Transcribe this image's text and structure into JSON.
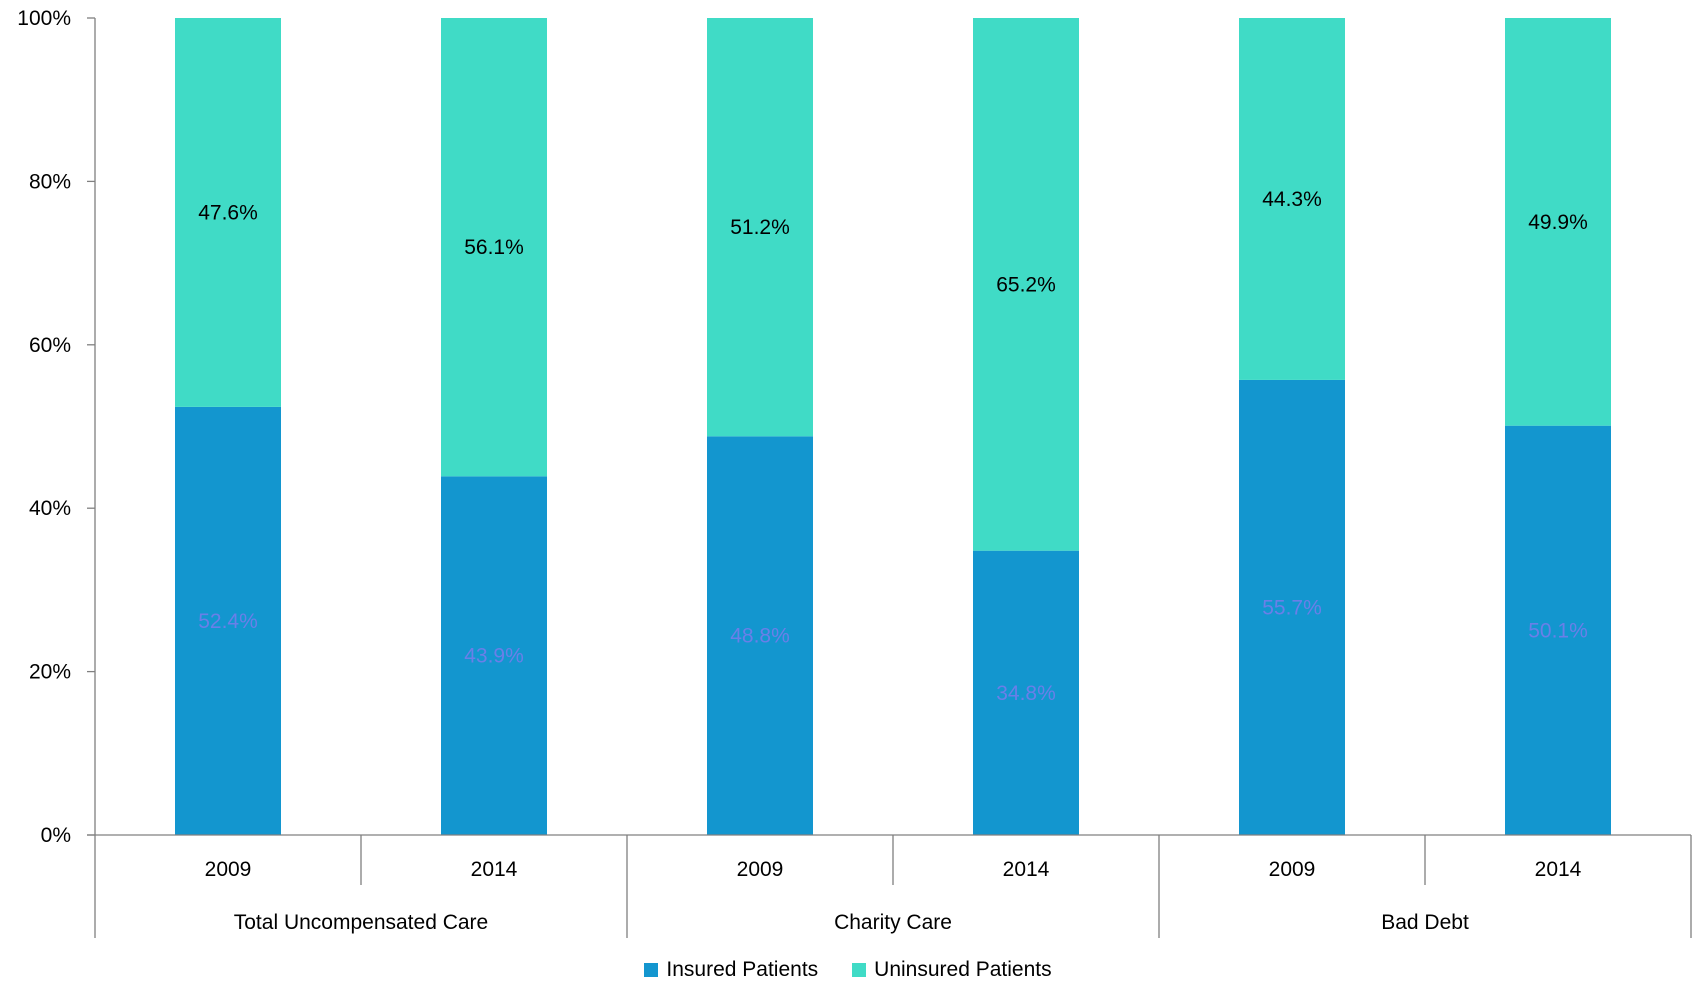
{
  "chart_data": {
    "type": "bar",
    "stacked": true,
    "percent_stacked": true,
    "categories": [
      {
        "year": "2009",
        "group": "Total Uncompensated Care"
      },
      {
        "year": "2014",
        "group": "Total Uncompensated Care"
      },
      {
        "year": "2009",
        "group": "Charity Care"
      },
      {
        "year": "2014",
        "group": "Charity Care"
      },
      {
        "year": "2009",
        "group": "Bad Debt"
      },
      {
        "year": "2014",
        "group": "Bad Debt"
      }
    ],
    "groups": [
      "Total Uncompensated Care",
      "Charity Care",
      "Bad Debt"
    ],
    "series": [
      {
        "name": "Insured Patients",
        "color": "#1396cf",
        "label_color": "#6a7fe8",
        "values": [
          52.4,
          43.9,
          48.8,
          34.8,
          55.7,
          50.1
        ],
        "labels": [
          "52.4%",
          "43.9%",
          "48.8%",
          "34.8%",
          "55.7%",
          "50.1%"
        ]
      },
      {
        "name": "Uninsured Patients",
        "color": "#40dbc6",
        "label_color": "#000000",
        "values": [
          47.6,
          56.1,
          51.2,
          65.2,
          44.3,
          49.9
        ],
        "labels": [
          "47.6%",
          "56.1%",
          "51.2%",
          "65.2%",
          "44.3%",
          "49.9%"
        ]
      }
    ],
    "ylim": [
      0,
      100
    ],
    "y_ticks": [
      "0%",
      "20%",
      "40%",
      "60%",
      "80%",
      "100%"
    ],
    "y_tick_values": [
      0,
      20,
      40,
      60,
      80,
      100
    ],
    "grid": false,
    "legend_position": "bottom-center",
    "title": "",
    "xlabel": "",
    "ylabel": ""
  }
}
